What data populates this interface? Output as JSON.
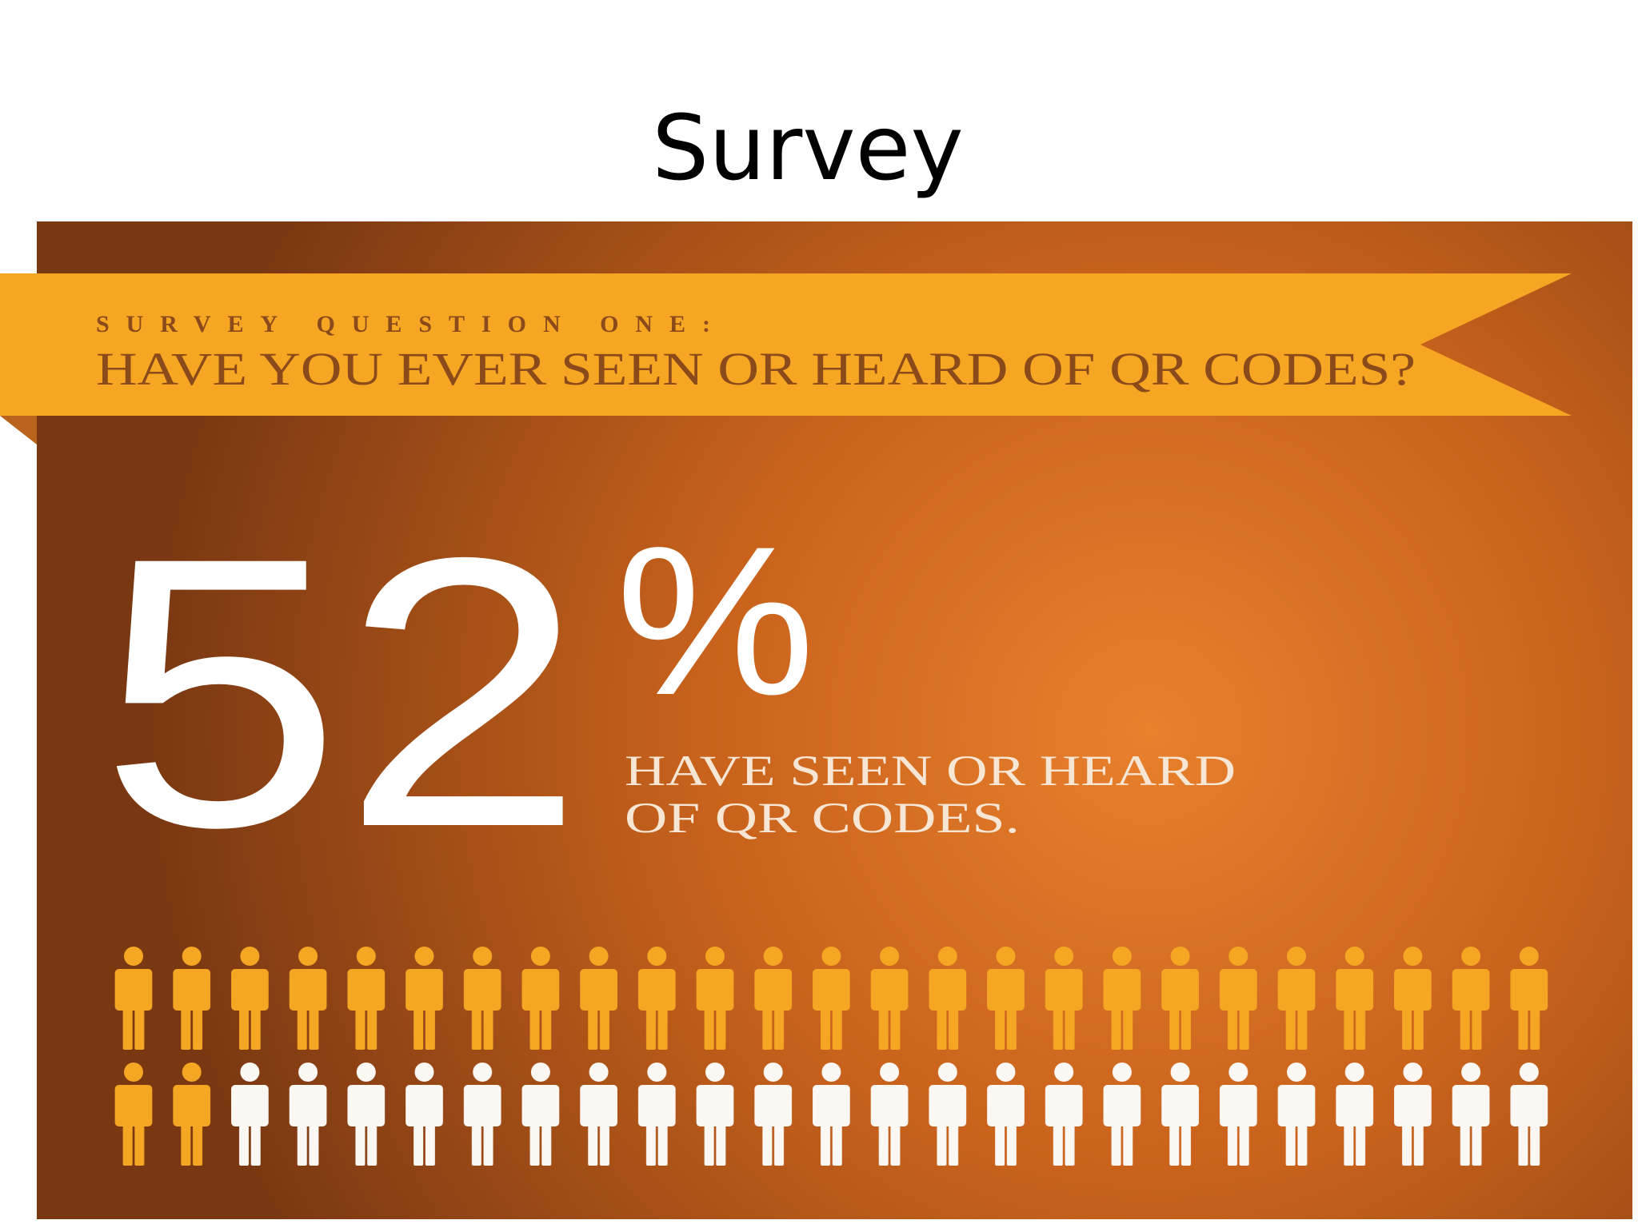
{
  "title": "Survey",
  "banner": {
    "label": "SURVEY QUESTION ONE:",
    "question": "HAVE YOU EVER SEEN OR HEARD OF QR CODES?"
  },
  "statistic": {
    "value": 52,
    "symbol": "%",
    "caption": [
      "HAVE SEEN OR HEARD",
      "OF QR CODES."
    ]
  }
}
